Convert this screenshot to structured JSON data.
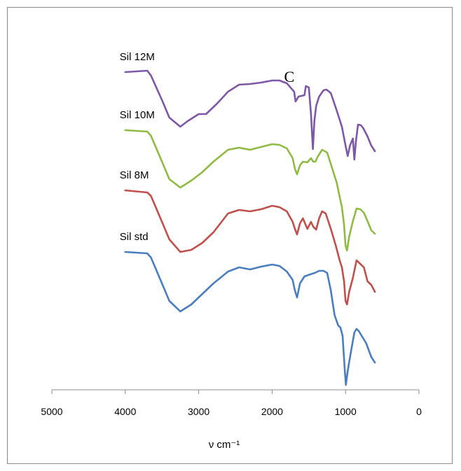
{
  "chart_data": {
    "type": "line",
    "title": "",
    "xlabel": "ν cm⁻¹",
    "ylabel": "",
    "xlim": [
      5000,
      0
    ],
    "x_ticks": [
      5000,
      4000,
      3000,
      2000,
      1000,
      0
    ],
    "x_tick_labels": [
      "5000",
      "4000",
      "3000",
      "2000",
      "1000",
      "0"
    ],
    "reversed_x": true,
    "y_axis_visible": false,
    "grid": false,
    "legend": "none",
    "annotation": {
      "text": "C",
      "x": 1480
    },
    "series": [
      {
        "name": "Sil 12M",
        "color": "#7e58a6",
        "label_x": 4000,
        "points": [
          [
            4000,
            0
          ],
          [
            3700,
            0.02
          ],
          [
            3650,
            -0.05
          ],
          [
            3500,
            -0.4
          ],
          [
            3400,
            -0.65
          ],
          [
            3250,
            -0.78
          ],
          [
            3150,
            -0.7
          ],
          [
            3000,
            -0.6
          ],
          [
            2900,
            -0.6
          ],
          [
            2750,
            -0.45
          ],
          [
            2600,
            -0.28
          ],
          [
            2450,
            -0.18
          ],
          [
            2300,
            -0.17
          ],
          [
            2150,
            -0.15
          ],
          [
            2000,
            -0.12
          ],
          [
            1900,
            -0.12
          ],
          [
            1800,
            -0.16
          ],
          [
            1700,
            -0.28
          ],
          [
            1680,
            -0.42
          ],
          [
            1640,
            -0.35
          ],
          [
            1600,
            -0.34
          ],
          [
            1560,
            -0.33
          ],
          [
            1540,
            -0.2
          ],
          [
            1500,
            -0.22
          ],
          [
            1470,
            -0.6
          ],
          [
            1455,
            -0.9
          ],
          [
            1445,
            -1.1
          ],
          [
            1425,
            -0.7
          ],
          [
            1400,
            -0.48
          ],
          [
            1360,
            -0.35
          ],
          [
            1300,
            -0.26
          ],
          [
            1260,
            -0.25
          ],
          [
            1200,
            -0.3
          ],
          [
            1120,
            -0.55
          ],
          [
            1050,
            -0.78
          ],
          [
            1000,
            -1.05
          ],
          [
            970,
            -1.2
          ],
          [
            940,
            -1.05
          ],
          [
            900,
            -0.95
          ],
          [
            880,
            -1.25
          ],
          [
            860,
            -1.0
          ],
          [
            830,
            -0.75
          ],
          [
            790,
            -0.76
          ],
          [
            760,
            -0.8
          ],
          [
            700,
            -0.92
          ],
          [
            650,
            -1.05
          ],
          [
            600,
            -1.13
          ]
        ]
      },
      {
        "name": "Sil 10M",
        "color": "#8fbb45",
        "label_x": 4000,
        "points": [
          [
            4000,
            0
          ],
          [
            3700,
            -0.02
          ],
          [
            3650,
            -0.08
          ],
          [
            3500,
            -0.45
          ],
          [
            3400,
            -0.7
          ],
          [
            3250,
            -0.82
          ],
          [
            3100,
            -0.72
          ],
          [
            2950,
            -0.6
          ],
          [
            2800,
            -0.45
          ],
          [
            2600,
            -0.28
          ],
          [
            2450,
            -0.25
          ],
          [
            2300,
            -0.28
          ],
          [
            2150,
            -0.24
          ],
          [
            2000,
            -0.2
          ],
          [
            1900,
            -0.21
          ],
          [
            1800,
            -0.26
          ],
          [
            1720,
            -0.4
          ],
          [
            1690,
            -0.55
          ],
          [
            1660,
            -0.63
          ],
          [
            1620,
            -0.5
          ],
          [
            1580,
            -0.45
          ],
          [
            1520,
            -0.46
          ],
          [
            1470,
            -0.4
          ],
          [
            1440,
            -0.45
          ],
          [
            1410,
            -0.45
          ],
          [
            1380,
            -0.38
          ],
          [
            1320,
            -0.28
          ],
          [
            1250,
            -0.32
          ],
          [
            1180,
            -0.55
          ],
          [
            1120,
            -0.75
          ],
          [
            1080,
            -0.95
          ],
          [
            1050,
            -1.1
          ],
          [
            1020,
            -1.35
          ],
          [
            1000,
            -1.65
          ],
          [
            980,
            -1.72
          ],
          [
            950,
            -1.52
          ],
          [
            900,
            -1.3
          ],
          [
            850,
            -1.12
          ],
          [
            800,
            -1.13
          ],
          [
            750,
            -1.18
          ],
          [
            700,
            -1.3
          ],
          [
            650,
            -1.43
          ],
          [
            600,
            -1.48
          ]
        ]
      },
      {
        "name": "Sil 8M",
        "color": "#c0504d",
        "label_x": 4000,
        "points": [
          [
            4000,
            0
          ],
          [
            3700,
            -0.03
          ],
          [
            3650,
            -0.08
          ],
          [
            3500,
            -0.45
          ],
          [
            3400,
            -0.7
          ],
          [
            3250,
            -0.88
          ],
          [
            3100,
            -0.85
          ],
          [
            2950,
            -0.75
          ],
          [
            2800,
            -0.6
          ],
          [
            2600,
            -0.33
          ],
          [
            2450,
            -0.28
          ],
          [
            2300,
            -0.3
          ],
          [
            2150,
            -0.27
          ],
          [
            2000,
            -0.22
          ],
          [
            1900,
            -0.24
          ],
          [
            1800,
            -0.3
          ],
          [
            1720,
            -0.45
          ],
          [
            1690,
            -0.55
          ],
          [
            1660,
            -0.63
          ],
          [
            1620,
            -0.47
          ],
          [
            1580,
            -0.4
          ],
          [
            1520,
            -0.55
          ],
          [
            1470,
            -0.45
          ],
          [
            1440,
            -0.52
          ],
          [
            1400,
            -0.56
          ],
          [
            1360,
            -0.4
          ],
          [
            1320,
            -0.3
          ],
          [
            1270,
            -0.33
          ],
          [
            1200,
            -0.55
          ],
          [
            1130,
            -0.8
          ],
          [
            1080,
            -1.0
          ],
          [
            1050,
            -1.1
          ],
          [
            1020,
            -1.3
          ],
          [
            1000,
            -1.58
          ],
          [
            980,
            -1.63
          ],
          [
            950,
            -1.45
          ],
          [
            900,
            -1.25
          ],
          [
            850,
            -1.0
          ],
          [
            800,
            -1.05
          ],
          [
            750,
            -1.1
          ],
          [
            700,
            -1.3
          ],
          [
            650,
            -1.35
          ],
          [
            600,
            -1.45
          ]
        ]
      },
      {
        "name": "Sil std",
        "color": "#4a7ebf",
        "label_x": 4000,
        "points": [
          [
            4000,
            0
          ],
          [
            3700,
            -0.02
          ],
          [
            3650,
            -0.08
          ],
          [
            3500,
            -0.45
          ],
          [
            3400,
            -0.7
          ],
          [
            3250,
            -0.85
          ],
          [
            3100,
            -0.75
          ],
          [
            2950,
            -0.6
          ],
          [
            2800,
            -0.45
          ],
          [
            2600,
            -0.28
          ],
          [
            2450,
            -0.22
          ],
          [
            2300,
            -0.25
          ],
          [
            2150,
            -0.21
          ],
          [
            2000,
            -0.18
          ],
          [
            1900,
            -0.2
          ],
          [
            1800,
            -0.28
          ],
          [
            1720,
            -0.4
          ],
          [
            1690,
            -0.55
          ],
          [
            1660,
            -0.65
          ],
          [
            1620,
            -0.45
          ],
          [
            1560,
            -0.35
          ],
          [
            1480,
            -0.32
          ],
          [
            1420,
            -0.3
          ],
          [
            1360,
            -0.27
          ],
          [
            1300,
            -0.27
          ],
          [
            1250,
            -0.3
          ],
          [
            1200,
            -0.55
          ],
          [
            1150,
            -0.9
          ],
          [
            1100,
            -1.05
          ],
          [
            1070,
            -1.08
          ],
          [
            1040,
            -1.2
          ],
          [
            1010,
            -1.7
          ],
          [
            995,
            -1.9
          ],
          [
            970,
            -1.7
          ],
          [
            930,
            -1.45
          ],
          [
            880,
            -1.15
          ],
          [
            850,
            -1.1
          ],
          [
            820,
            -1.13
          ],
          [
            780,
            -1.2
          ],
          [
            720,
            -1.3
          ],
          [
            650,
            -1.5
          ],
          [
            600,
            -1.58
          ]
        ]
      }
    ]
  }
}
